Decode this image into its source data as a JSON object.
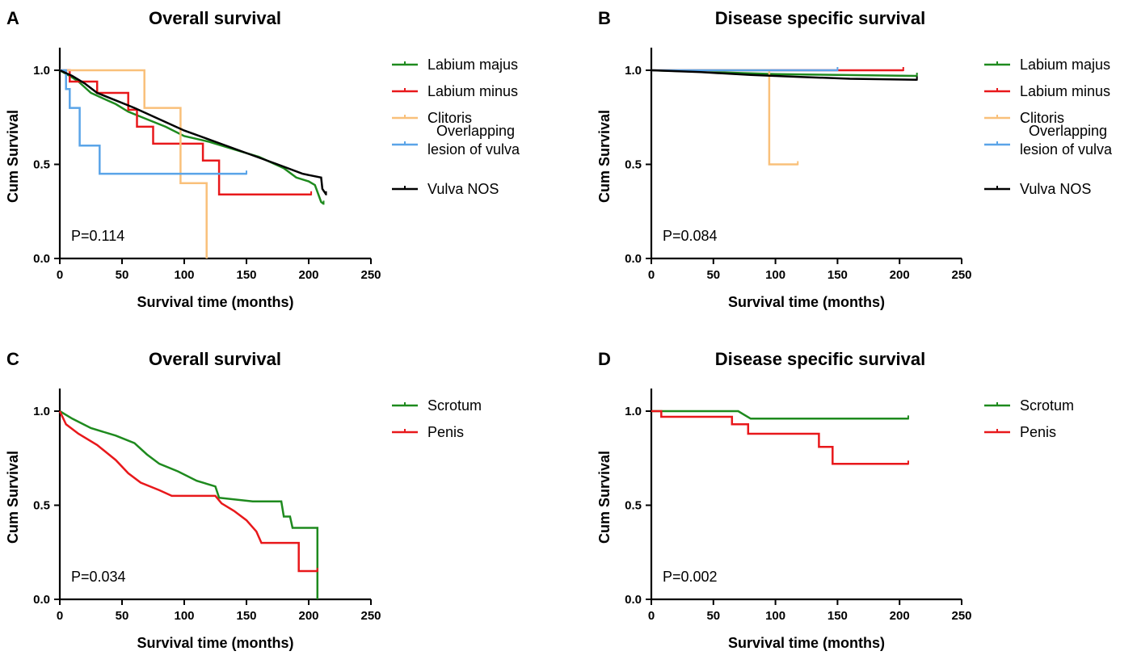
{
  "colors": {
    "green": "#1e8a1e",
    "red": "#e8181b",
    "orange": "#f9c07a",
    "blue": "#5aa4e8",
    "black": "#000000"
  },
  "chart_data": [
    {
      "panel": "A",
      "type": "line",
      "subtype": "kaplan-meier",
      "title": "Overall survival",
      "xlabel": "Survival time (months)",
      "ylabel": "Cum Survival",
      "xlim": [
        0,
        250
      ],
      "ylim": [
        0,
        1.0
      ],
      "xticks": [
        "0",
        "50",
        "100",
        "150",
        "200",
        "250"
      ],
      "yticks": [
        "0.0",
        "0.5",
        "1.0"
      ],
      "annotation": "P=0.114",
      "legend": [
        "Labium majus",
        "Labium minus",
        "Clitoris",
        "Overlapping lesion of vulva",
        "Vulva NOS"
      ],
      "series": [
        {
          "name": "Labium majus",
          "color": "#1e8a1e",
          "points": [
            [
              0,
              1.0
            ],
            [
              8,
              0.97
            ],
            [
              15,
              0.94
            ],
            [
              25,
              0.88
            ],
            [
              35,
              0.85
            ],
            [
              45,
              0.82
            ],
            [
              55,
              0.78
            ],
            [
              70,
              0.74
            ],
            [
              85,
              0.7
            ],
            [
              100,
              0.65
            ],
            [
              120,
              0.62
            ],
            [
              140,
              0.58
            ],
            [
              160,
              0.54
            ],
            [
              180,
              0.48
            ],
            [
              190,
              0.43
            ],
            [
              200,
              0.41
            ],
            [
              205,
              0.39
            ],
            [
              210,
              0.3
            ],
            [
              212,
              0.29
            ]
          ]
        },
        {
          "name": "Labium minus",
          "color": "#e8181b",
          "points": [
            [
              0,
              1.0
            ],
            [
              8,
              1.0
            ],
            [
              8,
              0.94
            ],
            [
              30,
              0.94
            ],
            [
              30,
              0.88
            ],
            [
              55,
              0.88
            ],
            [
              55,
              0.79
            ],
            [
              62,
              0.79
            ],
            [
              62,
              0.7
            ],
            [
              75,
              0.7
            ],
            [
              75,
              0.61
            ],
            [
              115,
              0.61
            ],
            [
              115,
              0.52
            ],
            [
              128,
              0.52
            ],
            [
              128,
              0.34
            ],
            [
              202,
              0.34
            ]
          ]
        },
        {
          "name": "Clitoris",
          "color": "#f9c07a",
          "points": [
            [
              0,
              1.0
            ],
            [
              68,
              1.0
            ],
            [
              68,
              0.8
            ],
            [
              97,
              0.8
            ],
            [
              97,
              0.4
            ],
            [
              118,
              0.4
            ],
            [
              118,
              0.0
            ]
          ]
        },
        {
          "name": "Overlapping lesion of vulva",
          "color": "#5aa4e8",
          "points": [
            [
              0,
              1.0
            ],
            [
              5,
              1.0
            ],
            [
              5,
              0.9
            ],
            [
              8,
              0.9
            ],
            [
              8,
              0.8
            ],
            [
              16,
              0.8
            ],
            [
              16,
              0.6
            ],
            [
              32,
              0.6
            ],
            [
              32,
              0.45
            ],
            [
              150,
              0.45
            ]
          ]
        },
        {
          "name": "Vulva NOS",
          "color": "#000000",
          "points": [
            [
              0,
              1.0
            ],
            [
              10,
              0.97
            ],
            [
              20,
              0.93
            ],
            [
              30,
              0.88
            ],
            [
              45,
              0.84
            ],
            [
              60,
              0.8
            ],
            [
              80,
              0.74
            ],
            [
              100,
              0.68
            ],
            [
              125,
              0.62
            ],
            [
              150,
              0.56
            ],
            [
              175,
              0.5
            ],
            [
              195,
              0.45
            ],
            [
              210,
              0.43
            ],
            [
              211,
              0.37
            ],
            [
              214,
              0.34
            ]
          ]
        }
      ]
    },
    {
      "panel": "B",
      "type": "line",
      "subtype": "kaplan-meier",
      "title": "Disease specific survival",
      "xlabel": "Survival time (months)",
      "ylabel": "Cum Survival",
      "xlim": [
        0,
        250
      ],
      "ylim": [
        0,
        1.0
      ],
      "xticks": [
        "0",
        "50",
        "100",
        "150",
        "200",
        "250"
      ],
      "yticks": [
        "0.0",
        "0.5",
        "1.0"
      ],
      "annotation": "P=0.084",
      "legend": [
        "Labium majus",
        "Labium minus",
        "Clitoris",
        "Overlapping lesion of vulva",
        "Vulva NOS"
      ],
      "series": [
        {
          "name": "Labium majus",
          "color": "#1e8a1e",
          "points": [
            [
              0,
              1.0
            ],
            [
              50,
              0.99
            ],
            [
              100,
              0.98
            ],
            [
              150,
              0.975
            ],
            [
              214,
              0.97
            ]
          ]
        },
        {
          "name": "Labium minus",
          "color": "#e8181b",
          "points": [
            [
              0,
              1.0
            ],
            [
              203,
              1.0
            ]
          ]
        },
        {
          "name": "Clitoris",
          "color": "#f9c07a",
          "points": [
            [
              0,
              1.0
            ],
            [
              95,
              1.0
            ],
            [
              95,
              0.5
            ],
            [
              118,
              0.5
            ]
          ]
        },
        {
          "name": "Overlapping lesion of vulva",
          "color": "#5aa4e8",
          "points": [
            [
              0,
              1.0
            ],
            [
              150,
              1.0
            ]
          ]
        },
        {
          "name": "Vulva NOS",
          "color": "#000000",
          "points": [
            [
              0,
              1.0
            ],
            [
              40,
              0.99
            ],
            [
              80,
              0.975
            ],
            [
              120,
              0.965
            ],
            [
              160,
              0.955
            ],
            [
              214,
              0.95
            ]
          ]
        }
      ]
    },
    {
      "panel": "C",
      "type": "line",
      "subtype": "kaplan-meier",
      "title": "Overall survival",
      "xlabel": "Survival time (months)",
      "ylabel": "Cum Survival",
      "xlim": [
        0,
        250
      ],
      "ylim": [
        0,
        1.0
      ],
      "xticks": [
        "0",
        "50",
        "100",
        "150",
        "200",
        "250"
      ],
      "yticks": [
        "0.0",
        "0.5",
        "1.0"
      ],
      "annotation": "P=0.034",
      "legend": [
        "Scrotum",
        "Penis"
      ],
      "series": [
        {
          "name": "Scrotum",
          "color": "#1e8a1e",
          "points": [
            [
              0,
              1.0
            ],
            [
              10,
              0.96
            ],
            [
              25,
              0.91
            ],
            [
              45,
              0.87
            ],
            [
              60,
              0.83
            ],
            [
              70,
              0.77
            ],
            [
              80,
              0.72
            ],
            [
              95,
              0.68
            ],
            [
              110,
              0.63
            ],
            [
              125,
              0.6
            ],
            [
              128,
              0.54
            ],
            [
              155,
              0.52
            ],
            [
              178,
              0.52
            ],
            [
              180,
              0.44
            ],
            [
              185,
              0.44
            ],
            [
              187,
              0.38
            ],
            [
              207,
              0.38
            ],
            [
              207,
              0.0
            ]
          ]
        },
        {
          "name": "Penis",
          "color": "#e8181b",
          "points": [
            [
              0,
              1.0
            ],
            [
              5,
              0.93
            ],
            [
              15,
              0.88
            ],
            [
              30,
              0.82
            ],
            [
              45,
              0.74
            ],
            [
              55,
              0.67
            ],
            [
              65,
              0.62
            ],
            [
              80,
              0.58
            ],
            [
              90,
              0.55
            ],
            [
              125,
              0.55
            ],
            [
              130,
              0.51
            ],
            [
              140,
              0.47
            ],
            [
              150,
              0.42
            ],
            [
              158,
              0.36
            ],
            [
              162,
              0.3
            ],
            [
              192,
              0.3
            ],
            [
              192,
              0.15
            ],
            [
              207,
              0.15
            ]
          ]
        }
      ]
    },
    {
      "panel": "D",
      "type": "line",
      "subtype": "kaplan-meier",
      "title": "Disease specific survival",
      "xlabel": "Survival time (months)",
      "ylabel": "Cum Survival",
      "xlim": [
        0,
        250
      ],
      "ylim": [
        0,
        1.0
      ],
      "xticks": [
        "0",
        "50",
        "100",
        "150",
        "200",
        "250"
      ],
      "yticks": [
        "0.0",
        "0.5",
        "1.0"
      ],
      "annotation": "P=0.002",
      "legend": [
        "Scrotum",
        "Penis"
      ],
      "series": [
        {
          "name": "Scrotum",
          "color": "#1e8a1e",
          "points": [
            [
              0,
              1.0
            ],
            [
              70,
              1.0
            ],
            [
              75,
              0.98
            ],
            [
              80,
              0.96
            ],
            [
              207,
              0.96
            ]
          ]
        },
        {
          "name": "Penis",
          "color": "#e8181b",
          "points": [
            [
              0,
              1.0
            ],
            [
              8,
              1.0
            ],
            [
              8,
              0.97
            ],
            [
              65,
              0.97
            ],
            [
              65,
              0.93
            ],
            [
              78,
              0.93
            ],
            [
              78,
              0.88
            ],
            [
              135,
              0.88
            ],
            [
              135,
              0.81
            ],
            [
              146,
              0.81
            ],
            [
              146,
              0.72
            ],
            [
              207,
              0.72
            ]
          ]
        }
      ]
    }
  ]
}
